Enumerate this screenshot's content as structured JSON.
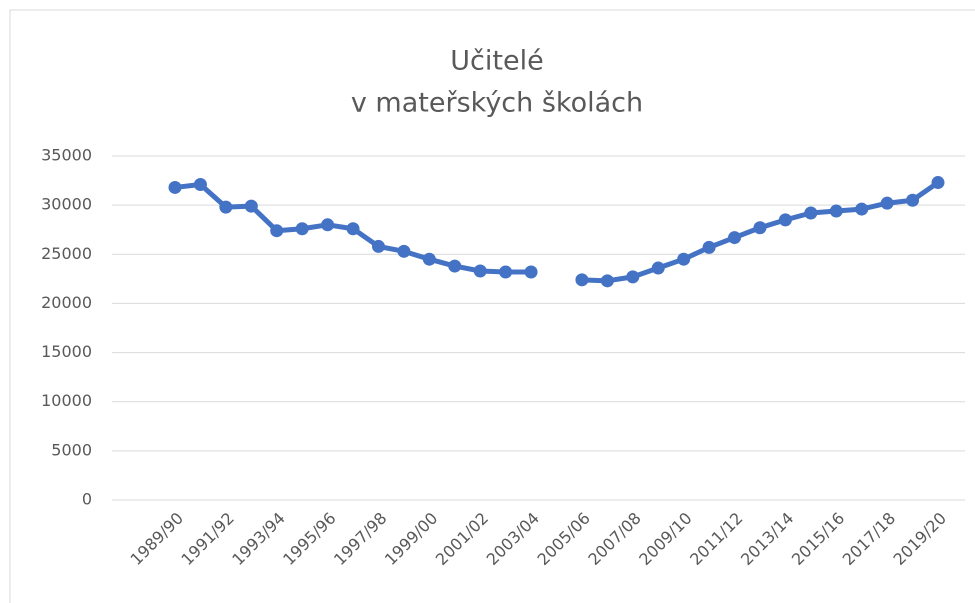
{
  "chart_data": {
    "type": "line",
    "title": [
      "Učitelé",
      "v mateřských školách"
    ],
    "categories": [
      "1989/90",
      null,
      "1991/92",
      null,
      "1993/94",
      null,
      "1995/96",
      null,
      "1997/98",
      null,
      "1999/00",
      null,
      "2001/02",
      null,
      "2003/04",
      null,
      "2005/06",
      null,
      "2007/08",
      null,
      "2009/10",
      null,
      "2011/12",
      null,
      "2013/14",
      null,
      "2015/16",
      null,
      "2017/18",
      null,
      "2019/20"
    ],
    "series": [
      {
        "color": "#4472c4",
        "values": [
          31800,
          32100,
          29800,
          29900,
          27400,
          27600,
          28000,
          27600,
          25800,
          25300,
          24500,
          23800,
          23300,
          23200,
          23200,
          null,
          22400,
          22300,
          22700,
          23600,
          24500,
          25700,
          26700,
          27700,
          28500,
          29200,
          29400,
          29600,
          30200,
          30500,
          32300
        ]
      }
    ],
    "ylim": [
      0,
      35000
    ],
    "yticks": [
      0,
      5000,
      10000,
      15000,
      20000,
      25000,
      30000,
      35000
    ],
    "grid": true
  }
}
